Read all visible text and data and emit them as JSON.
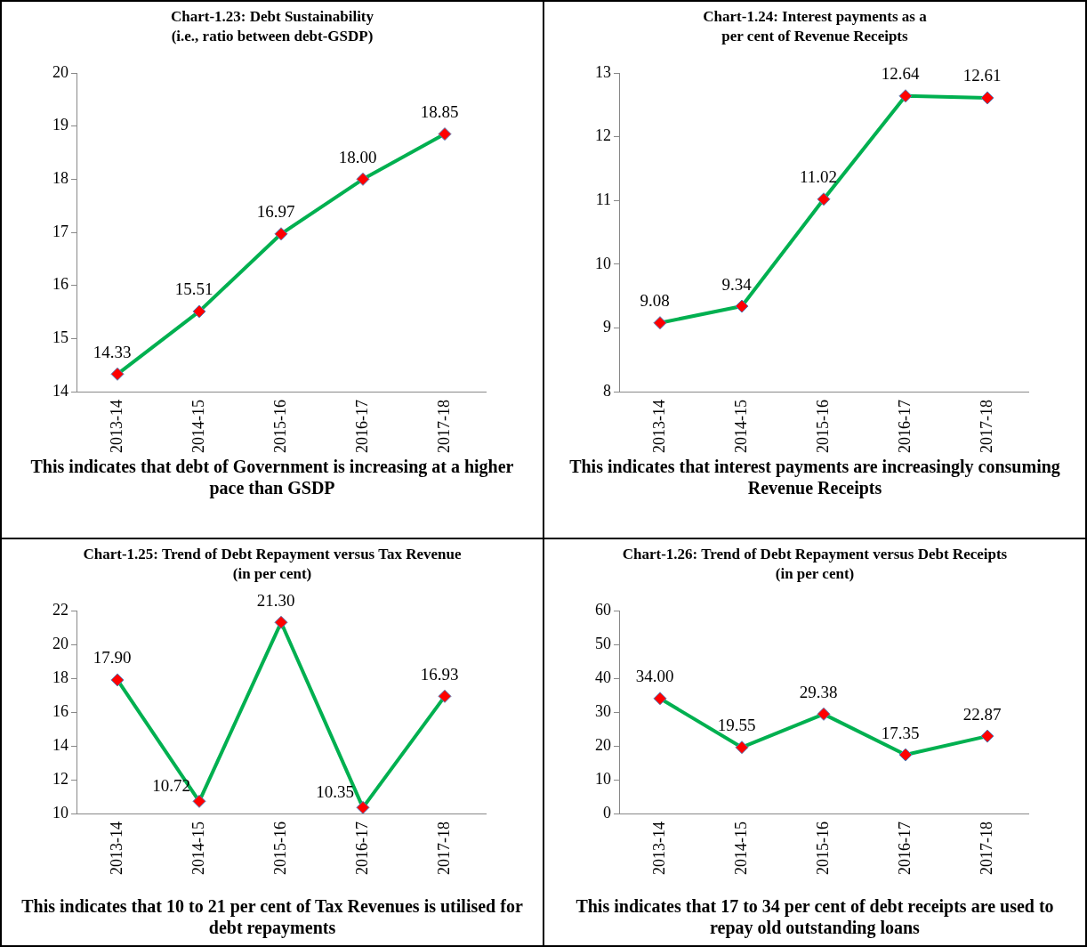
{
  "chart_data": [
    {
      "type": "line",
      "title": "Chart-1.23: Debt Sustainability",
      "subtitle": "(i.e., ratio between debt-GSDP)",
      "categories": [
        "2013-14",
        "2014-15",
        "2015-16",
        "2016-17",
        "2017-18"
      ],
      "series": [
        {
          "color": "#00b050",
          "values": [
            14.33,
            15.51,
            16.97,
            18.0,
            18.85
          ],
          "value_labels": [
            "14.33",
            "15.51",
            "16.97",
            "18.00",
            "18.85"
          ]
        }
      ],
      "ylim": [
        14,
        20
      ],
      "yticks": [
        14,
        15,
        16,
        17,
        18,
        19,
        20
      ],
      "grid": false,
      "legend": false,
      "marker": "diamond",
      "line_style": "solid",
      "annotations": [
        "This indicates that debt of Government is increasing at a higher pace than GSDP"
      ]
    },
    {
      "type": "line",
      "title": "Chart-1.24: Interest payments as a",
      "subtitle": "per cent of Revenue Receipts",
      "categories": [
        "2013-14",
        "2014-15",
        "2015-16",
        "2016-17",
        "2017-18"
      ],
      "series": [
        {
          "color": "#00b050",
          "values": [
            9.08,
            9.34,
            11.02,
            12.64,
            12.61
          ],
          "value_labels": [
            "9.08",
            "9.34",
            "11.02",
            "12.64",
            "12.61"
          ]
        }
      ],
      "ylim": [
        8,
        13
      ],
      "yticks": [
        8,
        9,
        10,
        11,
        12,
        13
      ],
      "grid": false,
      "legend": false,
      "marker": "diamond",
      "line_style": "solid",
      "annotations": [
        "This indicates that interest payments are increasingly consuming Revenue Receipts"
      ]
    },
    {
      "type": "line",
      "title": "Chart-1.25: Trend of Debt Repayment versus Tax Revenue",
      "subtitle": "(in per cent)",
      "categories": [
        "2013-14",
        "2014-15",
        "2015-16",
        "2016-17",
        "2017-18"
      ],
      "series": [
        {
          "color": "#00b050",
          "values": [
            17.9,
            10.72,
            21.3,
            10.35,
            16.93
          ],
          "value_labels": [
            "17.90",
            "10.72",
            "21.30",
            "10.35",
            "16.93"
          ]
        }
      ],
      "ylim": [
        10,
        22
      ],
      "yticks": [
        10,
        12,
        14,
        16,
        18,
        20,
        22
      ],
      "grid": false,
      "legend": false,
      "marker": "diamond",
      "line_style": "solid",
      "annotations": [
        "This indicates that 10 to 21 per cent of Tax Revenues is utilised for debt repayments"
      ]
    },
    {
      "type": "line",
      "title": "Chart-1.26: Trend of Debt Repayment versus Debt Receipts",
      "subtitle": "(in per cent)",
      "categories": [
        "2013-14",
        "2014-15",
        "2015-16",
        "2016-17",
        "2017-18"
      ],
      "series": [
        {
          "color": "#00b050",
          "values": [
            34.0,
            19.55,
            29.38,
            17.35,
            22.87
          ],
          "value_labels": [
            "34.00",
            "19.55",
            "29.38",
            "17.35",
            "22.87"
          ]
        }
      ],
      "ylim": [
        0,
        60
      ],
      "yticks": [
        0,
        10,
        20,
        30,
        40,
        50,
        60
      ],
      "grid": false,
      "legend": false,
      "marker": "diamond",
      "line_style": "solid",
      "annotations": [
        "This indicates that 17 to 34 per cent of debt receipts are used to repay old outstanding loans"
      ]
    }
  ]
}
